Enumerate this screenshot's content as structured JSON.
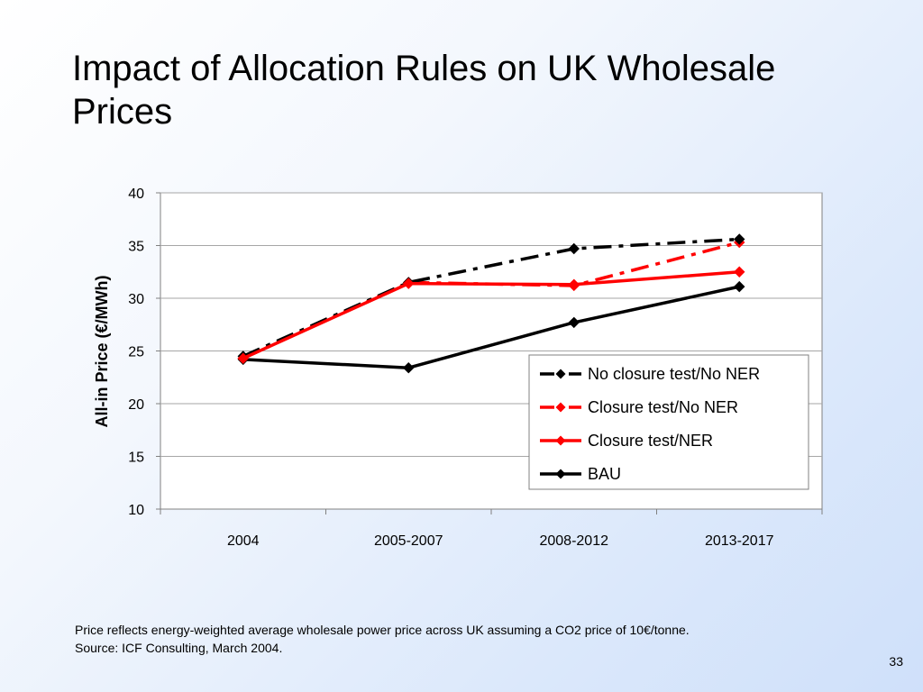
{
  "slide": {
    "title": "Impact of Allocation Rules on UK Wholesale Prices",
    "footnote_line1": "Price reflects energy-weighted average wholesale power price across UK assuming a CO2 price of 10€/tonne.",
    "footnote_line2": "Source: ICF Consulting, March 2004.",
    "page_number": "33"
  },
  "chart_data": {
    "type": "line",
    "title": "",
    "xlabel": "",
    "ylabel": "All-in Price (€/MWh)",
    "categories": [
      "2004",
      "2005-2007",
      "2008-2012",
      "2013-2017"
    ],
    "ylim": [
      10,
      40
    ],
    "yticks": [
      10,
      15,
      20,
      25,
      30,
      35,
      40
    ],
    "grid": true,
    "legend_position": "right",
    "series": [
      {
        "name": "No closure test/No NER",
        "values": [
          24.5,
          31.5,
          34.7,
          35.6
        ],
        "color": "#000000",
        "dash": "dash-dot",
        "marker": "diamond"
      },
      {
        "name": "Closure test/No NER",
        "values": [
          24.3,
          31.5,
          31.2,
          35.3
        ],
        "color": "#ff0000",
        "dash": "dash-dot",
        "marker": "diamond"
      },
      {
        "name": "Closure test/NER",
        "values": [
          24.3,
          31.4,
          31.3,
          32.5
        ],
        "color": "#ff0000",
        "dash": "solid",
        "marker": "diamond"
      },
      {
        "name": "BAU",
        "values": [
          24.2,
          23.4,
          27.7,
          31.1
        ],
        "color": "#000000",
        "dash": "solid",
        "marker": "diamond"
      }
    ]
  }
}
